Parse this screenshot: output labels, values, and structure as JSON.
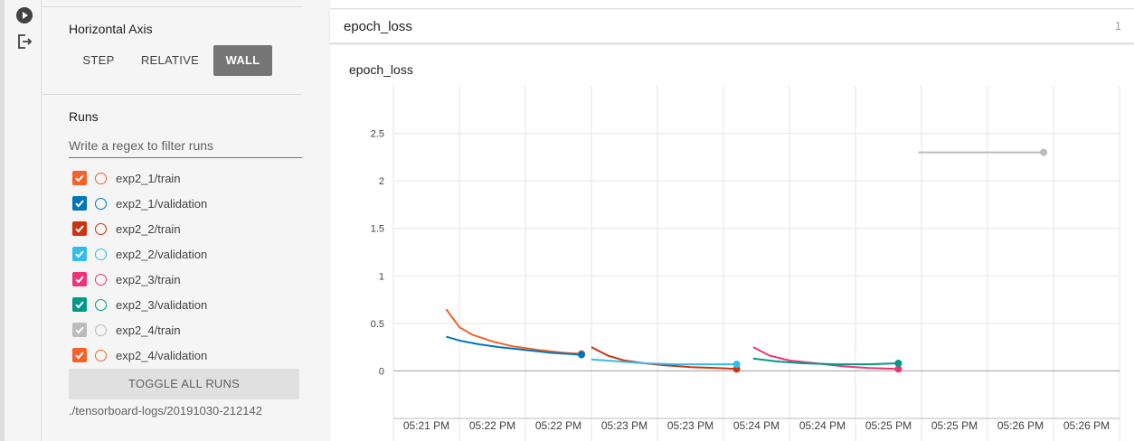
{
  "rail": {
    "icons": [
      "play-circle-icon",
      "logout-icon"
    ]
  },
  "sidebar": {
    "horizontal_axis": {
      "title": "Horizontal Axis",
      "options": [
        {
          "label": "STEP",
          "active": false
        },
        {
          "label": "RELATIVE",
          "active": false
        },
        {
          "label": "WALL",
          "active": true
        }
      ]
    },
    "runs": {
      "title": "Runs",
      "filter_placeholder": "Write a regex to filter runs",
      "items": [
        {
          "label": "exp2_1/train",
          "color": "#f4622a",
          "checked": true
        },
        {
          "label": "exp2_1/validation",
          "color": "#0077bb",
          "checked": true
        },
        {
          "label": "exp2_2/train",
          "color": "#cc3311",
          "checked": true
        },
        {
          "label": "exp2_2/validation",
          "color": "#33bbee",
          "checked": true
        },
        {
          "label": "exp2_3/train",
          "color": "#ee3377",
          "checked": true
        },
        {
          "label": "exp2_3/validation",
          "color": "#009988",
          "checked": true
        },
        {
          "label": "exp2_4/train",
          "color": "#bbbbbb",
          "checked": true
        },
        {
          "label": "exp2_4/validation",
          "color": "#f4622a",
          "checked": true
        }
      ],
      "toggle_label": "TOGGLE ALL RUNS",
      "logdir": "./tensorboard-logs/20191030-212142"
    }
  },
  "main": {
    "tag_group": {
      "title": "epoch_loss",
      "count": "1"
    },
    "card_title": "epoch_loss"
  },
  "chart_data": {
    "type": "line",
    "title": "epoch_loss",
    "xlabel": "",
    "ylabel": "",
    "x_ticks": [
      "05:21 PM",
      "05:22 PM",
      "05:22 PM",
      "05:23 PM",
      "05:23 PM",
      "05:24 PM",
      "05:24 PM",
      "05:25 PM",
      "05:25 PM",
      "05:26 PM",
      "05:26 PM"
    ],
    "y_ticks": [
      "0",
      "0.5",
      "1",
      "1.5",
      "2",
      "2.5"
    ],
    "ylim": [
      -0.5,
      3.0
    ],
    "xlim": [
      0,
      11
    ],
    "grid": true,
    "series": [
      {
        "name": "exp2_1/train",
        "color": "#f4622a",
        "x": [
          0.8,
          1.0,
          1.2,
          1.5,
          1.8,
          2.2,
          2.6,
          2.85
        ],
        "y": [
          0.65,
          0.46,
          0.38,
          0.31,
          0.26,
          0.22,
          0.19,
          0.18
        ]
      },
      {
        "name": "exp2_1/validation",
        "color": "#0077bb",
        "x": [
          0.8,
          1.0,
          1.3,
          1.6,
          2.0,
          2.4,
          2.85
        ],
        "y": [
          0.36,
          0.32,
          0.28,
          0.25,
          0.22,
          0.19,
          0.17
        ]
      },
      {
        "name": "exp2_2/train",
        "color": "#cc3311",
        "x": [
          3.0,
          3.25,
          3.5,
          3.8,
          4.1,
          4.5,
          4.9,
          5.2
        ],
        "y": [
          0.25,
          0.16,
          0.11,
          0.08,
          0.06,
          0.04,
          0.03,
          0.02
        ]
      },
      {
        "name": "exp2_2/validation",
        "color": "#33bbee",
        "x": [
          3.0,
          3.4,
          3.8,
          4.3,
          4.8,
          5.2
        ],
        "y": [
          0.12,
          0.1,
          0.08,
          0.07,
          0.07,
          0.07
        ]
      },
      {
        "name": "exp2_3/train",
        "color": "#ee3377",
        "x": [
          5.45,
          5.7,
          6.0,
          6.4,
          6.8,
          7.2,
          7.65
        ],
        "y": [
          0.25,
          0.16,
          0.11,
          0.08,
          0.05,
          0.03,
          0.02
        ]
      },
      {
        "name": "exp2_3/validation",
        "color": "#009988",
        "x": [
          5.45,
          5.8,
          6.2,
          6.7,
          7.2,
          7.65
        ],
        "y": [
          0.13,
          0.1,
          0.08,
          0.07,
          0.07,
          0.08
        ]
      },
      {
        "name": "exp2_4/train",
        "color": "#bbbbbb",
        "x": [
          7.95,
          8.6,
          9.3,
          9.85
        ],
        "y": [
          2.3,
          2.3,
          2.3,
          2.3
        ]
      }
    ]
  }
}
